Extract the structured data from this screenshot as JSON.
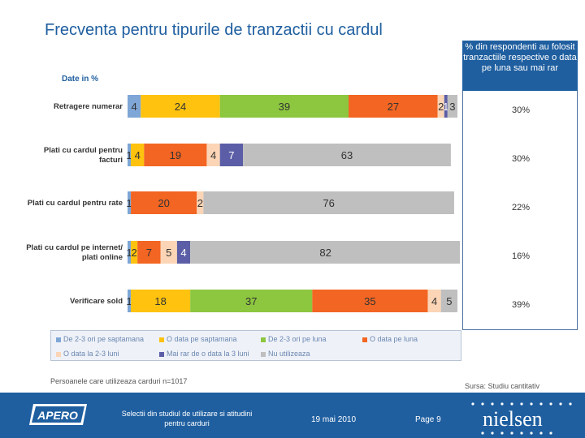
{
  "title": "Frecventa pentru tipurile de tranzactii cu cardul",
  "unit_label": "Date in %",
  "side_header": "% din respondenti au folosit tranzactiile respective o data pe luna sau mai rar",
  "side_values": [
    "30%",
    "30%",
    "22%",
    "16%",
    "39%"
  ],
  "chart_data": {
    "type": "bar",
    "orientation": "horizontal",
    "stacked": true,
    "categories": [
      "Retragere numerar",
      "Plati cu cardul pentru facturi",
      "Plati cu cardul pentru rate",
      "Plati cu cardul pe internet/ plati online",
      "Verificare sold"
    ],
    "category_lines": [
      [
        "Retragere numerar"
      ],
      [
        "Plati cu cardul pentru",
        "facturi"
      ],
      [
        "Plati cu cardul pentru rate"
      ],
      [
        "Plati cu cardul pe internet/",
        "plati online"
      ],
      [
        "Verificare sold"
      ]
    ],
    "series": [
      {
        "name": "De 2-3 ori pe saptamana",
        "color": "#7ea6d6",
        "values": [
          4,
          1,
          1,
          1,
          1
        ]
      },
      {
        "name": "O data pe saptamana",
        "color": "#ffc20e",
        "values": [
          24,
          4,
          0,
          2,
          18
        ]
      },
      {
        "name": "De 2-3 ori pe luna",
        "color": "#8dc63f",
        "values": [
          39,
          0,
          0,
          0,
          37
        ]
      },
      {
        "name": "O data pe luna",
        "color": "#f26522",
        "values": [
          27,
          19,
          20,
          7,
          35
        ]
      },
      {
        "name": "O data la 2-3 luni",
        "color": "#fbd5b5",
        "values": [
          2,
          4,
          2,
          5,
          4
        ]
      },
      {
        "name": "Mai rar de o data la 3 luni",
        "color": "#5b5ea6",
        "values": [
          1,
          7,
          0,
          4,
          0
        ]
      },
      {
        "name": "Nu utilizeaza",
        "color": "#bfbfbf",
        "values": [
          3,
          63,
          76,
          82,
          5
        ]
      }
    ],
    "labels": [
      [
        "4",
        "24",
        "39",
        "27",
        "2",
        "1",
        "3"
      ],
      [
        "1",
        "4",
        "",
        "19",
        "4",
        "7",
        "63"
      ],
      [
        "1",
        "",
        "",
        "20",
        "2",
        "",
        "76"
      ],
      [
        "1",
        "2",
        "",
        "7",
        "5",
        "4",
        "82"
      ],
      [
        "1",
        "18",
        "37",
        "35",
        "4",
        "",
        "5"
      ]
    ],
    "xlim": [
      0,
      100
    ]
  },
  "base_note": "Persoanele care utilizeaza carduri n=1017",
  "source": "Sursa: Studiu cantitativ",
  "footer": {
    "center_line1": "Selectii din studiul de utilizare si atitudini",
    "center_line2": "pentru carduri",
    "date": "19 mai 2010",
    "page": "Page 9",
    "logo_left": "APERO",
    "logo_right": "nielsen"
  }
}
